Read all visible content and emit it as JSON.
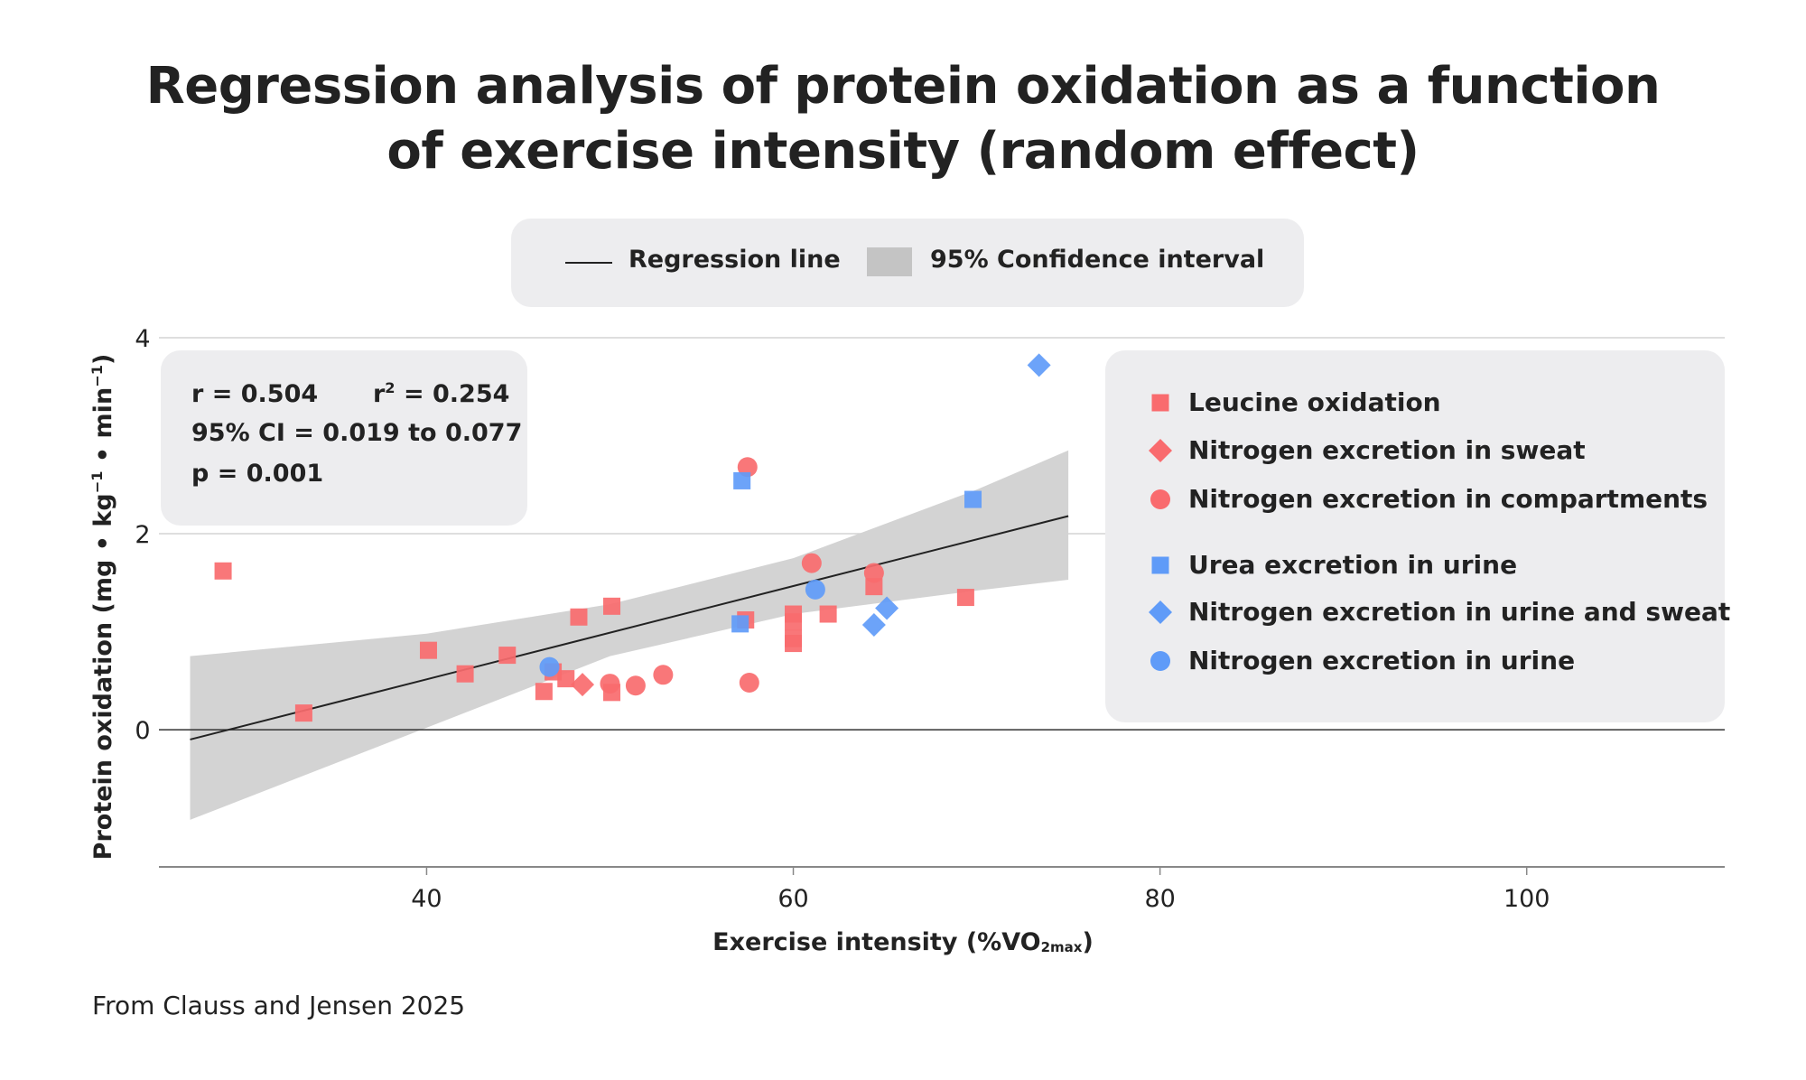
{
  "title_line1": "Regression analysis of protein oxidation as a function",
  "title_line2": "of exercise intensity (random effect)",
  "top_legend": {
    "line_label": "Regression line",
    "band_label": "95% Confidence interval"
  },
  "stats": {
    "r": "r = 0.504",
    "r2_prefix": "r",
    "r2_sup": "2",
    "r2_value": " = 0.254",
    "ci": "95% CI = 0.019 to 0.077",
    "p": "p = 0.001"
  },
  "footer": "From Clauss and Jensen 2025",
  "colors": {
    "red": "#f96b6e",
    "blue": "#5f9bf8",
    "band": "#d3d3d3",
    "line": "#222222",
    "panel": "#ededef"
  },
  "chart_data": {
    "type": "scatter",
    "title": "Regression analysis of protein oxidation as a function of exercise intensity (random effect)",
    "xlabel": "Exercise intensity (%VO2max)",
    "xlabel_main": "Exercise intensity (%VO",
    "xlabel_sub": "2max",
    "xlabel_end": ")",
    "ylabel_parts": [
      "Protein oxidation (mg • kg",
      "−1",
      " • min",
      "−1",
      ")"
    ],
    "xlim": [
      25.4,
      110.8
    ],
    "ylim": [
      -1.4,
      4
    ],
    "x_ticks": [
      40,
      60,
      80,
      100
    ],
    "y_ticks": [
      0,
      2,
      4
    ],
    "grid": "horizontal",
    "regression": {
      "x": [
        27.1,
        75.0
      ],
      "y": [
        -0.1,
        2.18
      ]
    },
    "confidence_band": {
      "x": [
        27.1,
        75.0
      ],
      "upper": [
        0.75,
        2.85
      ],
      "lower": [
        -0.92,
        1.53
      ],
      "upper_mid": [
        [
          40,
          0.98
        ],
        [
          50,
          1.28
        ],
        [
          60,
          1.75
        ],
        [
          70,
          2.45
        ]
      ],
      "lower_mid": [
        [
          40,
          0.02
        ],
        [
          50,
          0.75
        ],
        [
          60,
          1.18
        ],
        [
          70,
          1.42
        ]
      ]
    },
    "series": [
      {
        "name": "Leucine oxidation",
        "color": "red",
        "marker": "square",
        "group": 1,
        "points": [
          [
            28.9,
            1.62
          ],
          [
            33.3,
            0.17
          ],
          [
            40.1,
            0.81
          ],
          [
            42.1,
            0.57
          ],
          [
            44.4,
            0.76
          ],
          [
            46.4,
            0.39
          ],
          [
            46.9,
            0.59
          ],
          [
            47.6,
            0.52
          ],
          [
            48.3,
            1.15
          ],
          [
            50.1,
            1.26
          ],
          [
            50.1,
            0.38
          ],
          [
            57.4,
            1.12
          ],
          [
            60.0,
            1.18
          ],
          [
            60.0,
            1.1
          ],
          [
            60.0,
            0.93
          ],
          [
            60.0,
            0.88
          ],
          [
            61.9,
            1.18
          ],
          [
            64.4,
            1.46
          ],
          [
            69.4,
            1.35
          ]
        ]
      },
      {
        "name": "Nitrogen excretion in sweat",
        "color": "red",
        "marker": "diamond",
        "group": 1,
        "points": [
          [
            48.5,
            0.46
          ]
        ]
      },
      {
        "name": "Nitrogen excretion in compartments",
        "color": "red",
        "marker": "circle",
        "group": 1,
        "points": [
          [
            50.0,
            0.47
          ],
          [
            51.4,
            0.45
          ],
          [
            52.9,
            0.56
          ],
          [
            57.5,
            2.68
          ],
          [
            57.6,
            0.48
          ],
          [
            61.0,
            1.7
          ],
          [
            64.4,
            1.6
          ]
        ]
      },
      {
        "name": "Urea excretion in urine",
        "color": "blue",
        "marker": "square",
        "group": 2,
        "points": [
          [
            57.1,
            1.08
          ],
          [
            57.2,
            2.54
          ],
          [
            69.8,
            2.35
          ]
        ]
      },
      {
        "name": "Nitrogen excretion in urine and sweat",
        "color": "blue",
        "marker": "diamond",
        "group": 2,
        "points": [
          [
            64.4,
            1.07
          ],
          [
            65.1,
            1.24
          ],
          [
            73.4,
            3.72
          ]
        ]
      },
      {
        "name": "Nitrogen excretion in urine",
        "color": "blue",
        "marker": "circle",
        "group": 2,
        "points": [
          [
            46.7,
            0.64
          ],
          [
            61.2,
            1.43
          ]
        ]
      }
    ]
  }
}
